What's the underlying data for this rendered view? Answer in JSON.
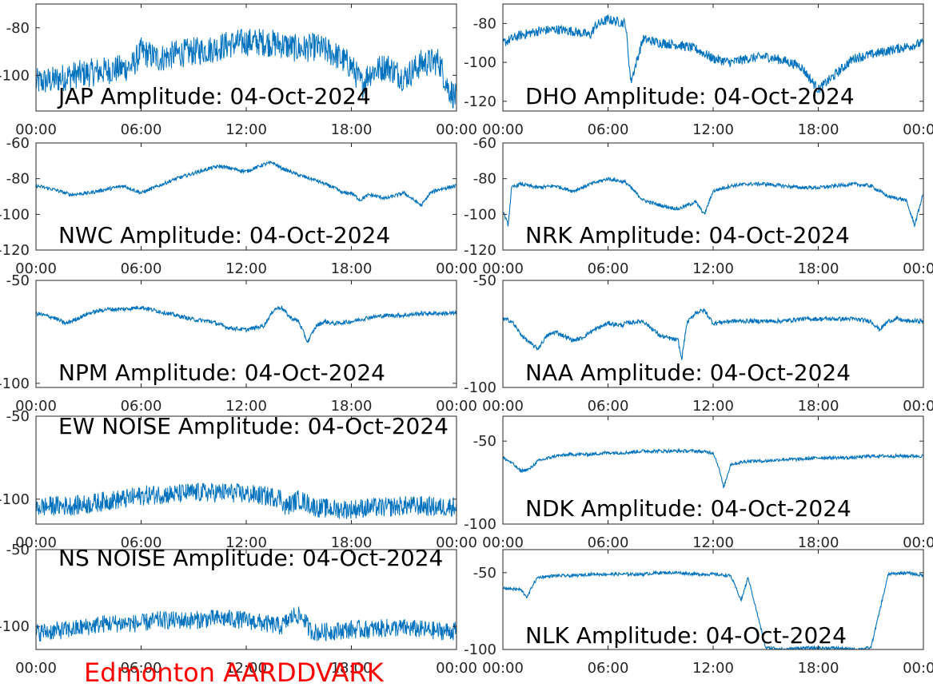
{
  "figure": {
    "footer": "Edmonton AARDDVARK",
    "footer_color": "#ff0000",
    "line_color": "#0072bd"
  },
  "chart_data": [
    {
      "type": "line",
      "id": "jap",
      "title": "JAP Amplitude: 04-Oct-2024",
      "x_ticks": [
        "00:00",
        "06:00",
        "12:00",
        "18:00",
        "00:00"
      ],
      "ylim": [
        -115,
        -70
      ],
      "y_ticks": [
        {
          "value": -80,
          "label": "-80"
        },
        {
          "value": -100,
          "label": "-100"
        }
      ],
      "series": [
        {
          "x": [
            0,
            1,
            2,
            3,
            4,
            5,
            5.5,
            6,
            7,
            8,
            9,
            10,
            11,
            12,
            13,
            14,
            15,
            16,
            17,
            18,
            18.6,
            19,
            20,
            21,
            22,
            23,
            23.5,
            24
          ],
          "y": [
            -103,
            -102,
            -100,
            -99,
            -98,
            -97,
            -96,
            -90,
            -93,
            -91,
            -90,
            -89,
            -87,
            -86,
            -86,
            -87,
            -89,
            -88,
            -91,
            -96,
            -104,
            -99,
            -96,
            -101,
            -95,
            -94,
            -105,
            -110
          ]
        }
      ]
    },
    {
      "type": "line",
      "id": "dho",
      "title": "DHO Amplitude: 04-Oct-2024",
      "x_ticks": [
        "00:00",
        "06:00",
        "12:00",
        "18:00",
        "00:00"
      ],
      "ylim": [
        -125,
        -70
      ],
      "y_ticks": [
        {
          "value": -80,
          "label": "-80"
        },
        {
          "value": -100,
          "label": "-100"
        },
        {
          "value": -120,
          "label": "-120"
        }
      ],
      "series": [
        {
          "x": [
            0,
            1,
            2,
            3,
            4,
            5,
            5.3,
            6,
            7,
            7.3,
            8,
            9,
            10,
            11,
            12,
            13,
            14,
            15,
            16,
            17,
            18,
            19,
            20,
            21,
            22,
            23,
            24
          ],
          "y": [
            -90,
            -86,
            -84,
            -83,
            -84,
            -86,
            -81,
            -78,
            -80,
            -110,
            -88,
            -90,
            -91,
            -93,
            -98,
            -100,
            -98,
            -97,
            -99,
            -102,
            -114,
            -106,
            -98,
            -96,
            -94,
            -92,
            -90
          ]
        }
      ]
    },
    {
      "type": "line",
      "id": "nwc",
      "title": "NWC Amplitude: 04-Oct-2024",
      "x_ticks": [
        "00:00",
        "06:00",
        "12:00",
        "18:00",
        "00:00"
      ],
      "ylim": [
        -120,
        -60
      ],
      "y_ticks": [
        {
          "value": -60,
          "label": "-60"
        },
        {
          "value": -80,
          "label": "-80"
        },
        {
          "value": -100,
          "label": "-100"
        },
        {
          "value": -120,
          "label": "-120"
        }
      ],
      "series": [
        {
          "x": [
            0,
            1,
            2,
            3,
            4,
            5,
            5.5,
            6,
            7,
            8,
            9,
            10,
            10.5,
            11,
            12,
            13,
            13.5,
            14,
            15,
            16,
            17,
            17.5,
            18,
            18.5,
            19,
            20,
            21,
            22,
            22.5,
            23,
            24
          ],
          "y": [
            -84,
            -86,
            -89,
            -88,
            -86,
            -84,
            -86,
            -88,
            -84,
            -80,
            -77,
            -74,
            -73,
            -74,
            -76,
            -72,
            -71,
            -74,
            -78,
            -81,
            -85,
            -88,
            -88,
            -92,
            -89,
            -91,
            -88,
            -95,
            -88,
            -86,
            -84
          ]
        }
      ]
    },
    {
      "type": "line",
      "id": "nrk",
      "title": "NRK Amplitude: 04-Oct-2024",
      "x_ticks": [
        "00:00",
        "06:00",
        "12:00",
        "18:00",
        "00:00"
      ],
      "ylim": [
        -120,
        -60
      ],
      "y_ticks": [
        {
          "value": -60,
          "label": "-60"
        },
        {
          "value": -80,
          "label": "-80"
        },
        {
          "value": -100,
          "label": "-100"
        },
        {
          "value": -120,
          "label": "-120"
        }
      ],
      "series": [
        {
          "x": [
            0,
            0.3,
            0.5,
            1,
            2,
            3,
            4,
            5,
            6,
            7,
            8,
            9,
            10,
            11,
            11.5,
            12,
            13,
            14,
            15,
            16,
            17,
            18,
            19,
            20,
            21,
            22,
            23,
            23.5,
            24
          ],
          "y": [
            -98,
            -106,
            -85,
            -83,
            -85,
            -84,
            -87,
            -83,
            -80,
            -82,
            -92,
            -95,
            -97,
            -93,
            -100,
            -87,
            -84,
            -83,
            -83,
            -84,
            -85,
            -85,
            -84,
            -83,
            -84,
            -90,
            -92,
            -106,
            -88
          ]
        }
      ]
    },
    {
      "type": "line",
      "id": "npm",
      "title": "NPM Amplitude: 04-Oct-2024",
      "x_ticks": [
        "00:00",
        "06:00",
        "12:00",
        "18:00",
        "00:00"
      ],
      "ylim": [
        -102,
        -50
      ],
      "y_ticks": [
        {
          "value": -50,
          "label": "-50"
        },
        {
          "value": -100,
          "label": "-100"
        }
      ],
      "series": [
        {
          "x": [
            0,
            1,
            1.7,
            2.5,
            3,
            4,
            5,
            6,
            7,
            8,
            9,
            10,
            11,
            12,
            13,
            13.6,
            14,
            14.5,
            15,
            15.5,
            16,
            16.5,
            17,
            18,
            19,
            20,
            21,
            22,
            23,
            24
          ],
          "y": [
            -66,
            -68,
            -71,
            -68,
            -66,
            -64,
            -64,
            -63,
            -65,
            -67,
            -69,
            -70,
            -73,
            -74,
            -72,
            -64,
            -63,
            -68,
            -70,
            -80,
            -72,
            -70,
            -71,
            -70,
            -68,
            -67,
            -67,
            -66,
            -66,
            -66
          ]
        }
      ]
    },
    {
      "type": "line",
      "id": "naa",
      "title": "NAA Amplitude: 04-Oct-2024",
      "x_ticks": [
        "00:00",
        "06:00",
        "12:00",
        "18:00",
        "00:00"
      ],
      "ylim": [
        -100,
        -50
      ],
      "y_ticks": [
        {
          "value": -50,
          "label": "-50"
        },
        {
          "value": -100,
          "label": "-100"
        }
      ],
      "series": [
        {
          "x": [
            0,
            0.5,
            1,
            1.5,
            2,
            2.5,
            3,
            4,
            4.5,
            5,
            6,
            6.8,
            7,
            8,
            9,
            10,
            10.2,
            10.5,
            11,
            11.5,
            12,
            13,
            14,
            15,
            16,
            17,
            18,
            19,
            20,
            21,
            21.5,
            22,
            22.5,
            23,
            24
          ],
          "y": [
            -68,
            -69,
            -75,
            -79,
            -82,
            -76,
            -74,
            -78,
            -77,
            -74,
            -70,
            -71,
            -70,
            -69,
            -76,
            -78,
            -87,
            -70,
            -65,
            -64,
            -70,
            -69,
            -69,
            -69,
            -69,
            -68,
            -68,
            -68,
            -68,
            -69,
            -73,
            -69,
            -68,
            -69,
            -69
          ]
        }
      ]
    },
    {
      "type": "line",
      "id": "ew-noise",
      "title": "EW NOISE Amplitude: 04-Oct-2024",
      "x_ticks": [
        "00:00",
        "06:00",
        "12:00",
        "18:00",
        "00:00"
      ],
      "ylim": [
        -115,
        -50
      ],
      "y_ticks": [
        {
          "value": -50,
          "label": "-50"
        },
        {
          "value": -100,
          "label": "-100"
        }
      ],
      "series": [
        {
          "x": [
            0,
            1,
            2,
            3,
            4,
            5,
            6,
            7,
            8,
            9,
            10,
            11,
            12,
            13,
            14,
            14.2,
            15,
            16,
            17,
            18,
            19,
            20,
            21,
            22,
            23,
            24
          ],
          "y": [
            -105,
            -104,
            -104,
            -103,
            -101,
            -100,
            -98,
            -97,
            -97,
            -96,
            -96,
            -96,
            -97,
            -98,
            -99,
            -105,
            -100,
            -105,
            -106,
            -106,
            -105,
            -105,
            -104,
            -104,
            -105,
            -104
          ]
        }
      ]
    },
    {
      "type": "line",
      "id": "ndk",
      "title": "NDK Amplitude: 04-Oct-2024",
      "x_ticks": [
        "00:00",
        "06:00",
        "12:00",
        "18:00",
        "00:00"
      ],
      "ylim": [
        -100,
        -35
      ],
      "y_ticks": [
        {
          "value": -50,
          "label": "-50"
        },
        {
          "value": -100,
          "label": "-100"
        }
      ],
      "series": [
        {
          "x": [
            0,
            0.5,
            1,
            1.5,
            2,
            3,
            4,
            5,
            6,
            7,
            8,
            9,
            10,
            11,
            12,
            12.3,
            12.6,
            13,
            14,
            15,
            16,
            17,
            18,
            19,
            20,
            21,
            22,
            23,
            24
          ],
          "y": [
            -60,
            -63,
            -68,
            -67,
            -62,
            -59,
            -58,
            -58,
            -57,
            -57,
            -56,
            -56,
            -56,
            -56,
            -57,
            -65,
            -78,
            -64,
            -62,
            -62,
            -61,
            -61,
            -60,
            -60,
            -60,
            -59,
            -59,
            -59,
            -59
          ]
        }
      ]
    },
    {
      "type": "line",
      "id": "ns-noise",
      "title": "NS NOISE Amplitude: 04-Oct-2024",
      "x_ticks": [
        "00:00",
        "06:00",
        "12:00",
        "18:00",
        "00:00"
      ],
      "ylim": [
        -115,
        -50
      ],
      "y_ticks": [
        {
          "value": -50,
          "label": "-50"
        },
        {
          "value": -100,
          "label": "-100"
        }
      ],
      "series": [
        {
          "x": [
            0,
            1,
            2,
            3,
            4,
            5,
            6,
            7,
            8,
            9,
            10,
            11,
            12,
            13,
            14,
            14.5,
            14.8,
            15.3,
            15.6,
            16,
            17,
            18,
            19,
            20,
            21,
            22,
            23,
            24
          ],
          "y": [
            -104,
            -103,
            -102,
            -100,
            -98,
            -98,
            -98,
            -96,
            -96,
            -96,
            -95,
            -95,
            -96,
            -98,
            -100,
            -95,
            -92,
            -95,
            -102,
            -104,
            -103,
            -102,
            -102,
            -101,
            -101,
            -102,
            -103,
            -103
          ]
        }
      ]
    },
    {
      "type": "line",
      "id": "nlk",
      "title": "NLK Amplitude: 04-Oct-2024",
      "x_ticks": [
        "00:00",
        "06:00",
        "12:00",
        "18:00",
        "00:00"
      ],
      "ylim": [
        -100,
        -35
      ],
      "y_ticks": [
        {
          "value": -50,
          "label": "-50"
        },
        {
          "value": -100,
          "label": "-100"
        }
      ],
      "series": [
        {
          "x": [
            0,
            1,
            1.4,
            1.7,
            2,
            3,
            4,
            5,
            6,
            7,
            8,
            9,
            10,
            11,
            12,
            13,
            13.6,
            14,
            15,
            15.5,
            16,
            17,
            18,
            19,
            20,
            21,
            22,
            23,
            24
          ],
          "y": [
            -60,
            -61,
            -66,
            -58,
            -53,
            -52,
            -52,
            -51,
            -51,
            -51,
            -51,
            -50,
            -50,
            -51,
            -51,
            -52,
            -68,
            -53,
            -99,
            -99,
            -100,
            -99,
            -99,
            -99,
            -100,
            -99,
            -51,
            -50,
            -52
          ]
        }
      ]
    }
  ]
}
